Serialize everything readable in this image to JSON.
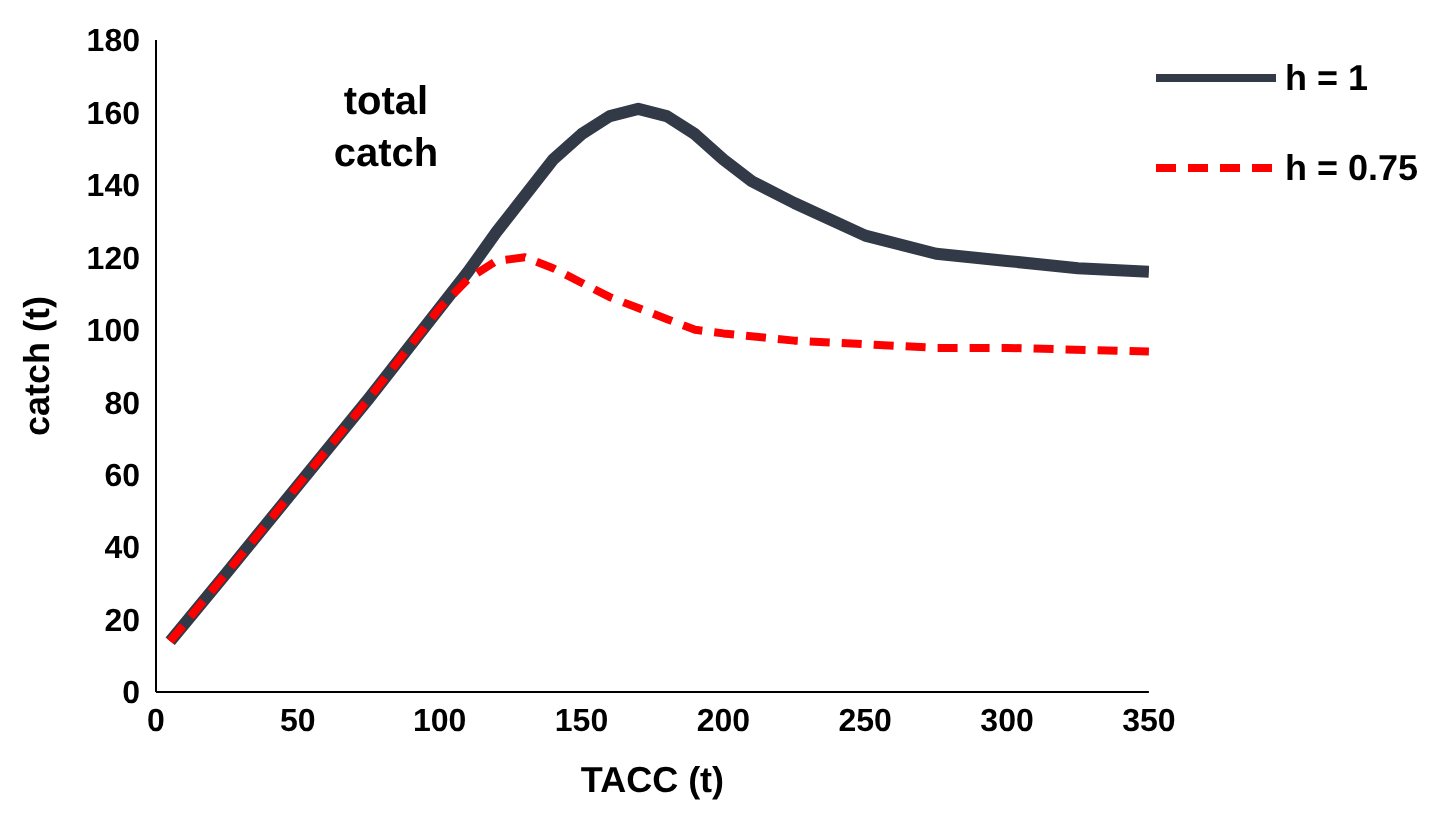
{
  "chart_data": {
    "type": "line",
    "xlabel": "TACC (t)",
    "ylabel": "catch (t)",
    "annotations": [
      "total catch"
    ],
    "xlim": [
      0,
      350
    ],
    "xticks": [
      0,
      50,
      100,
      150,
      200,
      250,
      300,
      350
    ],
    "ylim": [
      0,
      180
    ],
    "yticks": [
      0,
      20,
      40,
      60,
      80,
      100,
      120,
      140,
      160,
      180
    ],
    "grid": false,
    "legend": "top right",
    "marker": "none",
    "series": [
      {
        "name": "h = 1",
        "color": "#323a48",
        "line_style": "solid",
        "x": [
          5,
          25,
          50,
          75,
          100,
          110,
          120,
          130,
          140,
          150,
          160,
          170,
          180,
          190,
          200,
          210,
          225,
          250,
          275,
          300,
          325,
          350
        ],
        "values": [
          14,
          33,
          57,
          81,
          106,
          116,
          127,
          137,
          147,
          154,
          159,
          161,
          159,
          154,
          147,
          141,
          135,
          126,
          121,
          119,
          117,
          116
        ]
      },
      {
        "name": "h = 0.75",
        "color": "#ff0000",
        "line_style": "dashed",
        "x": [
          5,
          25,
          50,
          75,
          100,
          110,
          120,
          130,
          140,
          150,
          160,
          170,
          180,
          190,
          200,
          225,
          250,
          275,
          300,
          350
        ],
        "values": [
          14,
          33,
          57,
          81,
          106,
          114,
          119,
          120,
          117,
          113,
          109,
          106,
          103,
          100,
          99,
          97,
          96,
          95,
          95,
          94
        ]
      }
    ]
  }
}
